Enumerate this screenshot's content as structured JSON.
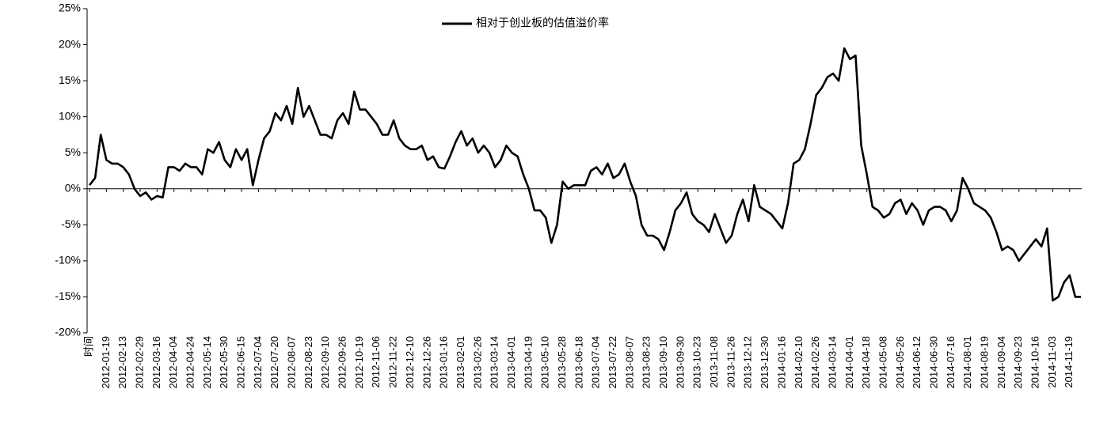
{
  "chart_data": {
    "type": "line",
    "series": [
      {
        "name": "相对于创业板的估值溢价率",
        "color": "#000000",
        "values": [
          0.5,
          1.5,
          7.5,
          4,
          3.5,
          3.5,
          3,
          2,
          0,
          -1,
          -0.5,
          -1.5,
          -1,
          -1.2,
          3,
          3,
          2.5,
          3.5,
          3,
          3,
          2,
          5.5,
          5,
          6.5,
          4,
          3,
          5.5,
          4,
          5.5,
          0.5,
          4,
          7,
          8,
          10.5,
          9.5,
          11.5,
          9,
          14,
          10,
          11.5,
          9.5,
          7.5,
          7.5,
          7,
          9.5,
          10.5,
          9,
          13.5,
          11,
          11,
          10,
          9,
          7.5,
          7.5,
          9.5,
          7,
          6,
          5.5,
          5.5,
          6,
          4,
          4.5,
          3,
          2.8,
          4.5,
          6.5,
          8,
          6,
          7,
          5,
          6,
          5,
          3,
          4,
          6,
          5,
          4.5,
          2,
          0,
          -3,
          -3,
          -4,
          -7.5,
          -5,
          1,
          0,
          0.5,
          0.5,
          0.5,
          2.5,
          3,
          2,
          3.5,
          1.5,
          2,
          3.5,
          1,
          -1,
          -5,
          -6.5,
          -6.5,
          -7,
          -8.5,
          -6,
          -3,
          -2,
          -0.5,
          -3.5,
          -4.5,
          -5,
          -6,
          -3.5,
          -5.5,
          -7.5,
          -6.5,
          -3.5,
          -1.5,
          -4.5,
          0.5,
          -2.5,
          -3,
          -3.5,
          -4.5,
          -5.5,
          -2,
          3.5,
          4,
          5.5,
          9,
          13,
          14,
          15.5,
          16,
          15,
          19.5,
          18,
          18.5,
          6,
          2,
          -2.5,
          -3,
          -4,
          -3.5,
          -2,
          -1.5,
          -3.5,
          -2,
          -3,
          -5,
          -3,
          -2.5,
          -2.5,
          -3,
          -4.5,
          -3,
          1.5,
          0,
          -2,
          -2.5,
          -3,
          -4,
          -6,
          -8.5,
          -8,
          -8.5,
          -10,
          -9,
          -8,
          -7,
          -8,
          -5.5,
          -15.5,
          -15,
          -13,
          -12,
          -15,
          -15
        ]
      }
    ],
    "categories": [
      "时间",
      null,
      null,
      "2012-01-19",
      null,
      null,
      "2012-02-13",
      null,
      null,
      "2012-02-29",
      null,
      null,
      "2012-03-16",
      null,
      null,
      "2012-04-04",
      null,
      null,
      "2012-04-24",
      null,
      null,
      "2012-05-14",
      null,
      null,
      "2012-05-30",
      null,
      null,
      "2012-06-15",
      null,
      null,
      "2012-07-04",
      null,
      null,
      "2012-07-20",
      null,
      null,
      "2012-08-07",
      null,
      null,
      "2012-08-23",
      null,
      null,
      "2012-09-10",
      null,
      null,
      "2012-09-26",
      null,
      null,
      "2012-10-19",
      null,
      null,
      "2012-11-06",
      null,
      null,
      "2012-11-22",
      null,
      null,
      "2012-12-10",
      null,
      null,
      "2012-12-26",
      null,
      null,
      "2013-01-16",
      null,
      null,
      "2013-02-01",
      null,
      null,
      "2013-02-26",
      null,
      null,
      "2013-03-14",
      null,
      null,
      "2013-04-01",
      null,
      null,
      "2013-04-19",
      null,
      null,
      "2013-05-10",
      null,
      null,
      "2013-05-28",
      null,
      null,
      "2013-06-18",
      null,
      null,
      "2013-07-04",
      null,
      null,
      "2013-07-22",
      null,
      null,
      "2013-08-07",
      null,
      null,
      "2013-08-23",
      null,
      null,
      "2013-09-10",
      null,
      null,
      "2013-09-30",
      null,
      null,
      "2013-10-23",
      null,
      null,
      "2013-11-08",
      null,
      null,
      "2013-11-26",
      null,
      null,
      "2013-12-12",
      null,
      null,
      "2013-12-30",
      null,
      null,
      "2014-01-16",
      null,
      null,
      "2014-02-10",
      null,
      null,
      "2014-02-26",
      null,
      null,
      "2014-03-14",
      null,
      null,
      "2014-04-01",
      null,
      null,
      "2014-04-18",
      null,
      null,
      "2014-05-08",
      null,
      null,
      "2014-05-26",
      null,
      null,
      "2014-06-12",
      null,
      null,
      "2014-06-30",
      null,
      null,
      "2014-07-16",
      null,
      null,
      "2014-08-01",
      null,
      null,
      "2014-08-19",
      null,
      null,
      "2014-09-04",
      null,
      null,
      "2014-09-23",
      null,
      null,
      "2014-10-16",
      null,
      null,
      "2014-11-03",
      null,
      null,
      "2014-11-19",
      null,
      null
    ],
    "ylim": [
      -20,
      25
    ],
    "yticks": [
      {
        "value": -20,
        "label": "-20%"
      },
      {
        "value": -15,
        "label": "-15%"
      },
      {
        "value": -10,
        "label": "-10%"
      },
      {
        "value": -5,
        "label": "-5%"
      },
      {
        "value": 0,
        "label": "0%"
      },
      {
        "value": 5,
        "label": "5%"
      },
      {
        "value": 10,
        "label": "10%"
      },
      {
        "value": 15,
        "label": "15%"
      },
      {
        "value": 20,
        "label": "20%"
      },
      {
        "value": 25,
        "label": "25%"
      }
    ],
    "legend": "top"
  }
}
